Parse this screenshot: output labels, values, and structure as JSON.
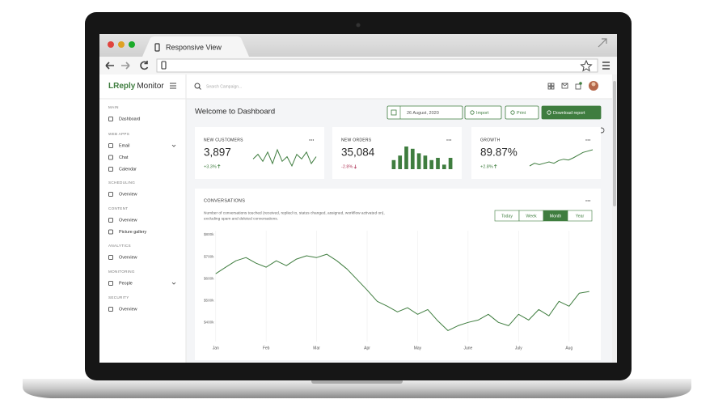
{
  "browser": {
    "tab_title": "Responsive View"
  },
  "app": {
    "brand_accent": "LReply",
    "brand": "Monitor",
    "search_placeholder": "Search Campaign..."
  },
  "sidebar": [
    {
      "heading": "MAIN",
      "items": [
        "Dashboard"
      ]
    },
    {
      "heading": "WEB APPS",
      "items": [
        "Email",
        "Chat",
        "Calendar"
      ]
    },
    {
      "heading": "SCHEDULING",
      "items": [
        "Overview"
      ]
    },
    {
      "heading": "CONTENT",
      "items": [
        "Overview",
        "Picture gallery"
      ]
    },
    {
      "heading": "ANALYTICS",
      "items": [
        "Overview"
      ]
    },
    {
      "heading": "MONITORING",
      "items": [
        "People"
      ]
    },
    {
      "heading": "SECURITY",
      "items": [
        "Overview"
      ]
    }
  ],
  "page": {
    "title": "Welcome to Dashboard",
    "date": "26 August, 2020",
    "buttons": [
      "Import",
      "Print",
      "Download report"
    ]
  },
  "cards": [
    {
      "label": "NEW CUSTOMERS",
      "value": "3,897",
      "change": "+3.3%",
      "trend": "up",
      "spark_type": "line",
      "spark": [
        5,
        7,
        4,
        8,
        3,
        9,
        4,
        6,
        2,
        7,
        5,
        8,
        3,
        6
      ]
    },
    {
      "label": "NEW ORDERS",
      "value": "35,084",
      "change": "-2.8%",
      "trend": "down",
      "spark_type": "bar",
      "spark": [
        4,
        6,
        10,
        9,
        7,
        6,
        4,
        5,
        2,
        5
      ]
    },
    {
      "label": "GROWTH",
      "value": "89.87%",
      "change": "+2.8%",
      "trend": "up",
      "spark_type": "line",
      "spark": [
        2,
        3,
        2.5,
        3,
        3.5,
        3,
        4,
        4.5,
        4.2,
        5,
        6,
        7,
        7.5,
        8
      ]
    }
  ],
  "chart_data": {
    "type": "line",
    "title": "CONVERSATIONS",
    "subtitle": [
      "Number of conversations touched (received, replied to, status changed, assigned, workflow activated on),",
      "excluding spam and deleted conversations."
    ],
    "ranges": [
      "Today",
      "Week",
      "Month",
      "Year"
    ],
    "active_range": "Month",
    "color": "#3f7d3f",
    "x": [
      0,
      0.2,
      0.4,
      0.6,
      0.8,
      1,
      1.2,
      1.4,
      1.6,
      1.8,
      2,
      2.2,
      2.4,
      2.6,
      2.8,
      3,
      3.2,
      3.4,
      3.6,
      3.8,
      4,
      4.2,
      4.4,
      4.6,
      4.8,
      5,
      5.2,
      5.4,
      5.6,
      5.8,
      6,
      6.2,
      6.4,
      6.6,
      6.8,
      7,
      7.2,
      7.4
    ],
    "values": [
      622,
      652,
      681,
      696,
      670,
      652,
      681,
      659,
      689,
      704,
      696,
      711,
      681,
      644,
      596,
      548,
      496,
      474,
      448,
      467,
      437,
      459,
      407,
      363,
      385,
      400,
      411,
      437,
      400,
      385,
      437,
      411,
      459,
      430,
      496,
      474,
      533,
      541
    ],
    "xlim": [
      -0.3,
      7.5
    ],
    "xticks": [
      {
        "value": 0,
        "label": "Jan"
      },
      {
        "value": 1,
        "label": "Feb"
      },
      {
        "value": 2,
        "label": "Mar"
      },
      {
        "value": 3,
        "label": "Apr"
      },
      {
        "value": 4,
        "label": "May"
      },
      {
        "value": 5,
        "label": "June"
      },
      {
        "value": 6,
        "label": "July"
      },
      {
        "value": 7,
        "label": "Aug"
      }
    ],
    "ylim": [
      320,
      800
    ],
    "yticks": [
      {
        "value": 400,
        "label": "$400k"
      },
      {
        "value": 500,
        "label": "$500k"
      },
      {
        "value": 600,
        "label": "$600k"
      },
      {
        "value": 700,
        "label": "$700k"
      },
      {
        "value": 800,
        "label": "$800k"
      }
    ],
    "grid": "x"
  }
}
